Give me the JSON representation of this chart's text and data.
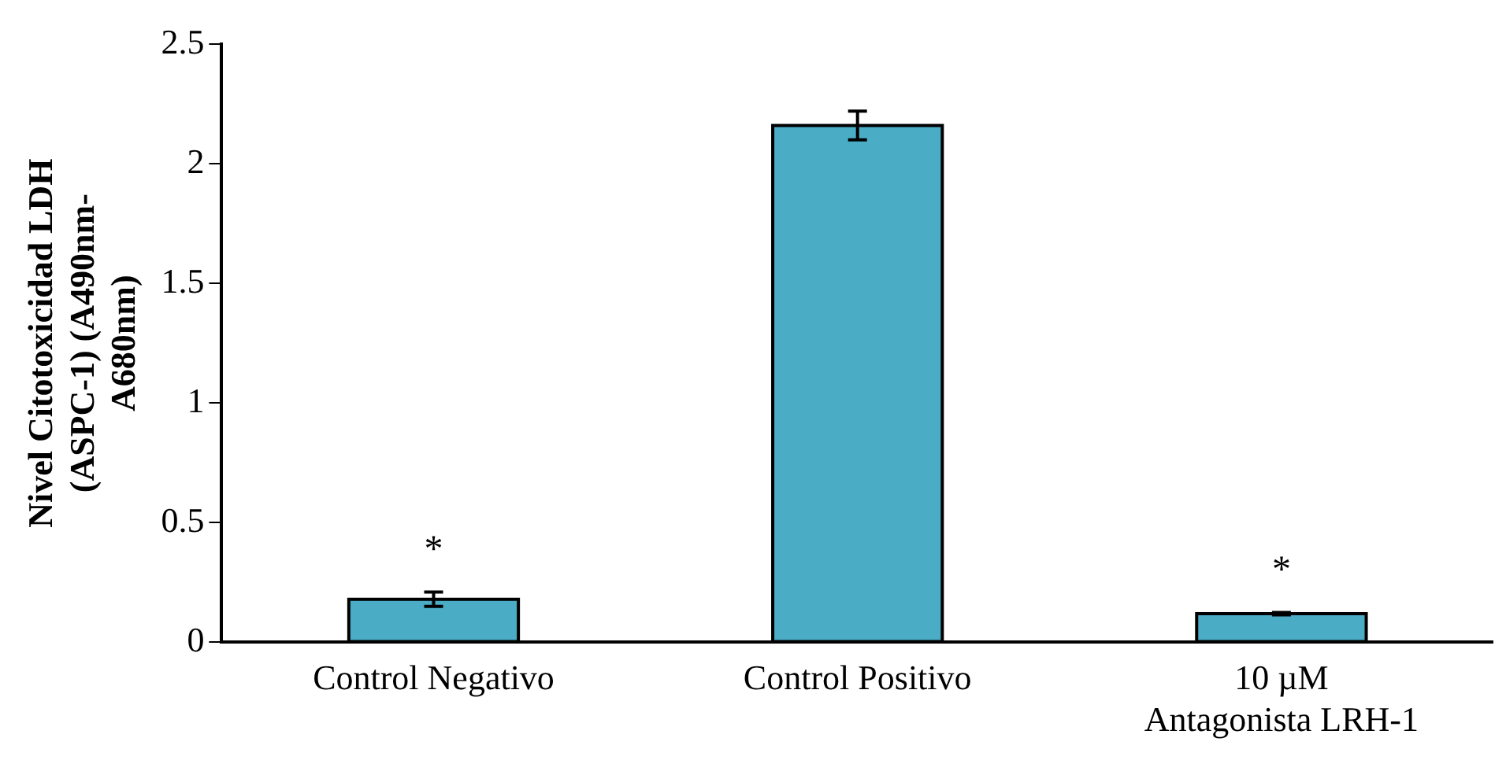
{
  "chart_data": {
    "type": "bar",
    "ylabel": "Nivel Citotoxicidad LDH\n(ASPC-1) (A490nm-\nA680nm)",
    "categories": [
      "Control Negativo",
      "Control Positivo",
      "10 µM\nAntagonista LRH-1"
    ],
    "values": [
      0.18,
      2.16,
      0.12
    ],
    "errors": [
      0.03,
      0.06,
      0.005
    ],
    "color": "#4bacc6",
    "ylim": [
      0,
      2.5
    ],
    "yticks": [
      0,
      0.5,
      1,
      1.5,
      2,
      2.5
    ],
    "grid": false,
    "legend": false,
    "annotations": [
      {
        "text": "*",
        "x": "Control Negativo",
        "y": 0.21
      },
      {
        "text": "*",
        "x": "10 µM\nAntagonista LRH-1",
        "y": 0.125
      }
    ]
  }
}
